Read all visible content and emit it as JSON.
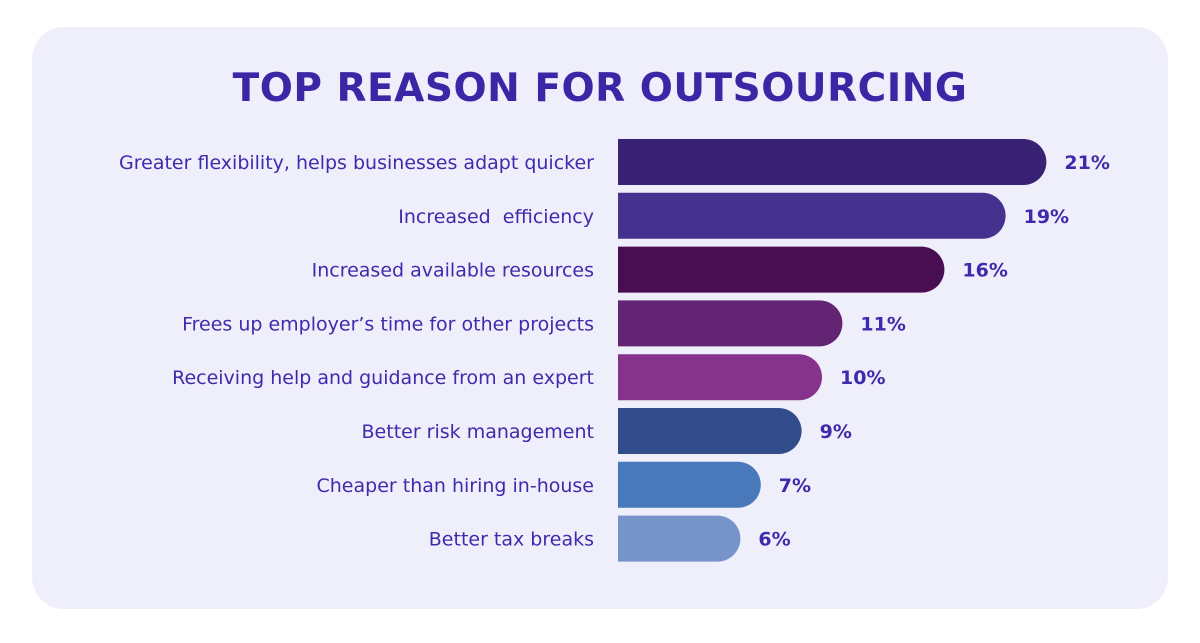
{
  "chart_data": {
    "type": "bar",
    "orientation": "horizontal",
    "title": "TOP REASON FOR OUTSOURCING",
    "categories": [
      "Greater flexibility, helps businesses adapt quicker",
      "Increased  efficiency",
      "Increased available resources",
      "Frees up employer’s time for other projects",
      "Receiving help and guidance from an expert",
      "Better risk management",
      "Cheaper than hiring in-house",
      "Better tax breaks"
    ],
    "values": [
      21,
      19,
      16,
      11,
      10,
      9,
      7,
      6
    ],
    "value_labels": [
      "21%",
      "19%",
      "16%",
      "11%",
      "10%",
      "9%",
      "7%",
      "6%"
    ],
    "colors": [
      "#392173",
      "#45328e",
      "#490e52",
      "#632474",
      "#86348b",
      "#324b8a",
      "#4a79bb",
      "#7694ca"
    ],
    "unit": "%",
    "grid": false,
    "legend": "none"
  }
}
